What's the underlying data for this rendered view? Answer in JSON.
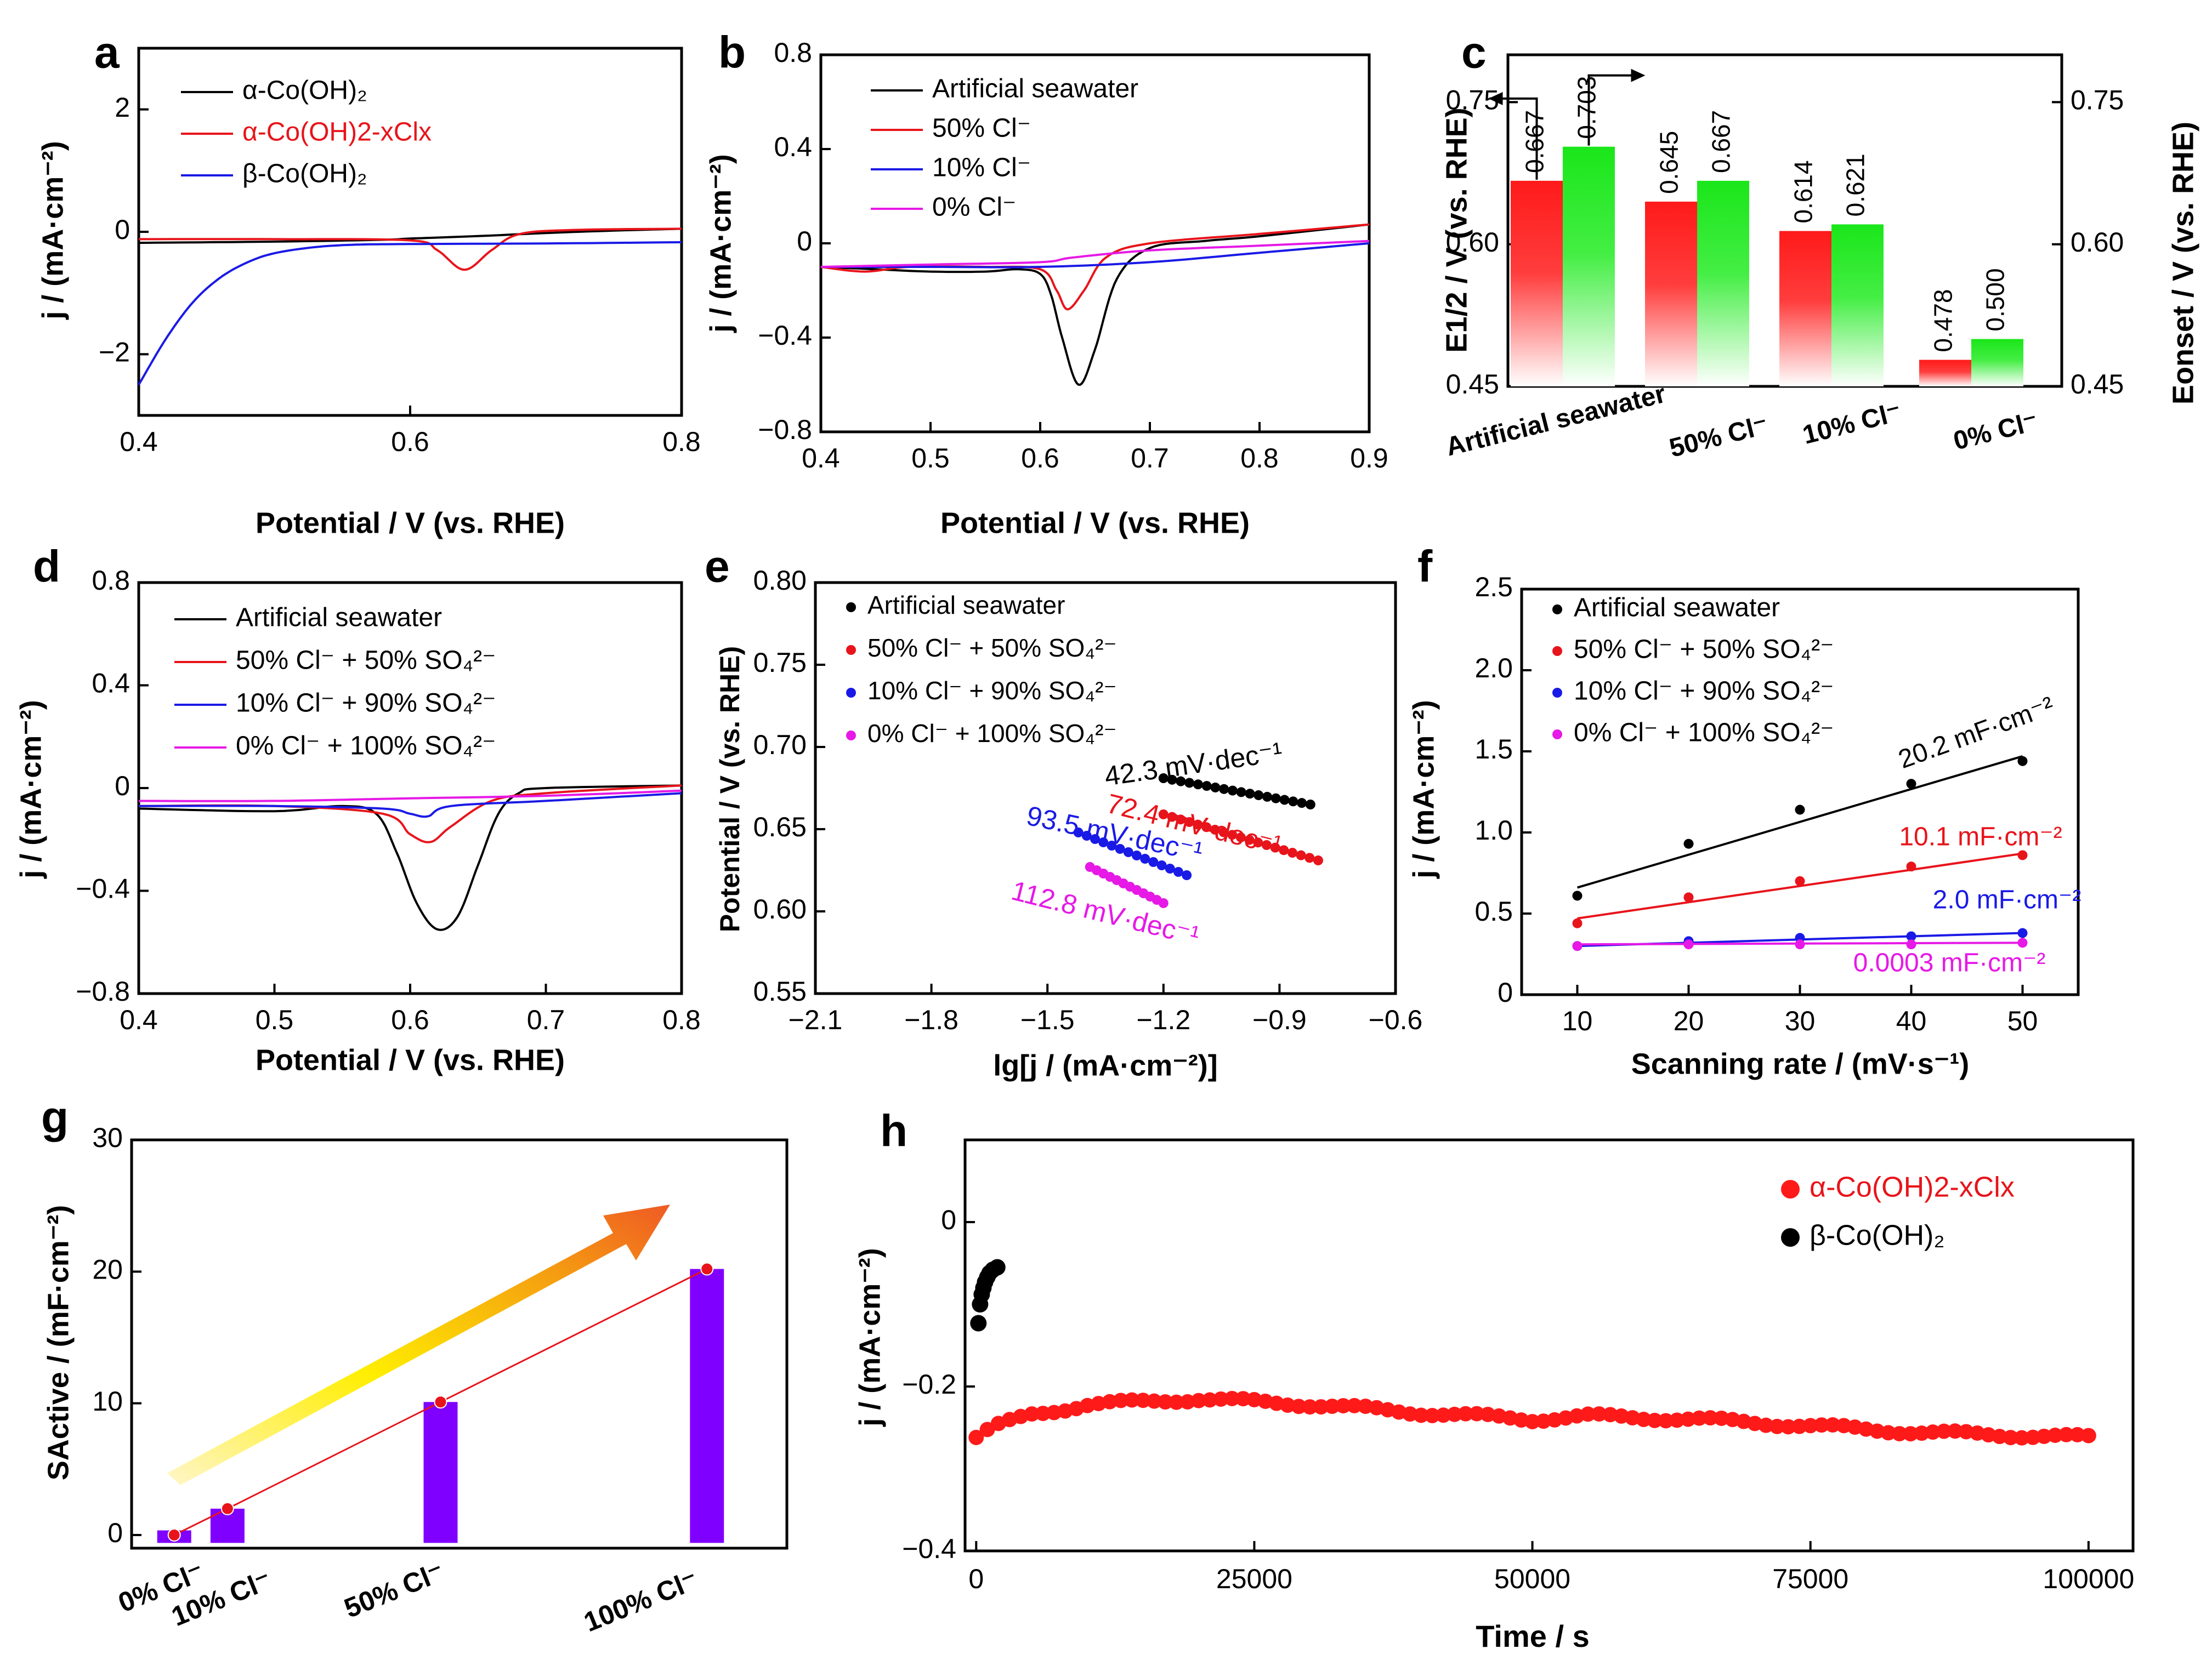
{
  "figure": {
    "panel_letters": [
      "a",
      "b",
      "c",
      "d",
      "e",
      "f",
      "g",
      "h"
    ]
  },
  "chart_data": [
    {
      "id": "a",
      "type": "line",
      "xlabel": "Potential / V (vs. RHE)",
      "ylabel": "j / (mA·cm⁻²)",
      "xlim": [
        0.4,
        0.8
      ],
      "ylim": [
        -3,
        3
      ],
      "xticks": [
        0.4,
        0.6,
        0.8
      ],
      "xticklabels": [
        "0.4",
        "0.6",
        "0.8"
      ],
      "yticks": [
        -2,
        0,
        2
      ],
      "yticklabels": [
        "−2",
        "0",
        "2"
      ],
      "legend": "top-left",
      "series": [
        {
          "name": "α-Co(OH)₂",
          "color": "#000000",
          "points": [
            [
              0.4,
              -0.18
            ],
            [
              0.5,
              -0.16
            ],
            [
              0.58,
              -0.13
            ],
            [
              0.6,
              -0.11
            ],
            [
              0.65,
              -0.07
            ],
            [
              0.7,
              -0.02
            ],
            [
              0.75,
              0.02
            ],
            [
              0.8,
              0.05
            ]
          ]
        },
        {
          "name": "α-Co(OH)2-xClx",
          "color": "#e8141b",
          "points": [
            [
              0.4,
              -0.12
            ],
            [
              0.5,
              -0.12
            ],
            [
              0.6,
              -0.14
            ],
            [
              0.62,
              -0.3
            ],
            [
              0.64,
              -0.62
            ],
            [
              0.66,
              -0.3
            ],
            [
              0.68,
              -0.04
            ],
            [
              0.72,
              0.03
            ],
            [
              0.8,
              0.05
            ]
          ]
        },
        {
          "name": "β-Co(OH)₂",
          "color": "#1a1ae6",
          "points": [
            [
              0.4,
              -2.5
            ],
            [
              0.42,
              -1.75
            ],
            [
              0.44,
              -1.15
            ],
            [
              0.46,
              -0.75
            ],
            [
              0.48,
              -0.5
            ],
            [
              0.5,
              -0.35
            ],
            [
              0.53,
              -0.25
            ],
            [
              0.56,
              -0.21
            ],
            [
              0.6,
              -0.2
            ],
            [
              0.7,
              -0.19
            ],
            [
              0.8,
              -0.17
            ]
          ]
        }
      ]
    },
    {
      "id": "b",
      "type": "line",
      "xlabel": "Potential / V (vs. RHE)",
      "ylabel": "j / (mA·cm⁻²)",
      "xlim": [
        0.4,
        0.9
      ],
      "ylim": [
        -0.8,
        0.8
      ],
      "xticks": [
        0.4,
        0.5,
        0.6,
        0.7,
        0.8,
        0.9
      ],
      "xticklabels": [
        "0.4",
        "0.5",
        "0.6",
        "0.7",
        "0.8",
        "0.9"
      ],
      "yticks": [
        -0.8,
        -0.4,
        0,
        0.4,
        0.8
      ],
      "yticklabels": [
        "−0.8",
        "−0.4",
        "0",
        "0.4",
        "0.8"
      ],
      "legend": "top-left",
      "series": [
        {
          "name": "Artificial seawater",
          "color": "#000000",
          "points": [
            [
              0.4,
              -0.1
            ],
            [
              0.45,
              -0.11
            ],
            [
              0.5,
              -0.12
            ],
            [
              0.55,
              -0.12
            ],
            [
              0.58,
              -0.11
            ],
            [
              0.6,
              -0.13
            ],
            [
              0.61,
              -0.22
            ],
            [
              0.62,
              -0.4
            ],
            [
              0.635,
              -0.6
            ],
            [
              0.65,
              -0.45
            ],
            [
              0.67,
              -0.15
            ],
            [
              0.7,
              -0.02
            ],
            [
              0.75,
              0.01
            ],
            [
              0.8,
              0.03
            ],
            [
              0.9,
              0.08
            ]
          ]
        },
        {
          "name": "50% Cl⁻",
          "color": "#e8141b",
          "points": [
            [
              0.4,
              -0.1
            ],
            [
              0.44,
              -0.12
            ],
            [
              0.48,
              -0.1
            ],
            [
              0.55,
              -0.1
            ],
            [
              0.6,
              -0.11
            ],
            [
              0.615,
              -0.2
            ],
            [
              0.625,
              -0.28
            ],
            [
              0.64,
              -0.2
            ],
            [
              0.66,
              -0.06
            ],
            [
              0.7,
              0.0
            ],
            [
              0.8,
              0.04
            ],
            [
              0.9,
              0.08
            ]
          ]
        },
        {
          "name": "10% Cl⁻",
          "color": "#1a1ae6",
          "points": [
            [
              0.4,
              -0.1
            ],
            [
              0.5,
              -0.1
            ],
            [
              0.6,
              -0.1
            ],
            [
              0.7,
              -0.08
            ],
            [
              0.8,
              -0.04
            ],
            [
              0.9,
              0.0
            ]
          ]
        },
        {
          "name": "0% Cl⁻",
          "color": "#e619e6",
          "points": [
            [
              0.4,
              -0.1
            ],
            [
              0.5,
              -0.09
            ],
            [
              0.6,
              -0.08
            ],
            [
              0.63,
              -0.06
            ],
            [
              0.7,
              -0.03
            ],
            [
              0.8,
              -0.01
            ],
            [
              0.9,
              0.01
            ]
          ]
        }
      ]
    },
    {
      "id": "c",
      "type": "bar",
      "ylabel": "E1/2 / V (vs. RHE)",
      "ylabel2": "Eonset / V (vs. RHE)",
      "ylim": [
        0.45,
        0.8
      ],
      "yticks": [
        0.45,
        0.6,
        0.75
      ],
      "yticklabels": [
        "0.45",
        "0.60",
        "0.75"
      ],
      "categories": [
        "Artificial seawater",
        "50% Cl⁻",
        "10% Cl⁻",
        "0% Cl⁻"
      ],
      "series": [
        {
          "name": "E1/2",
          "color": "#ff1a1a",
          "values": [
            0.667,
            0.645,
            0.614,
            0.478
          ],
          "labels": [
            "0.667",
            "0.645",
            "0.614",
            "0.478"
          ]
        },
        {
          "name": "Eonset",
          "color": "#1ae61a",
          "values": [
            0.703,
            0.667,
            0.621,
            0.5
          ],
          "labels": [
            "0.703",
            "0.667",
            "0.621",
            "0.500"
          ]
        }
      ]
    },
    {
      "id": "d",
      "type": "line",
      "xlabel": "Potential / V (vs. RHE)",
      "ylabel": "j / (mA·cm⁻²)",
      "xlim": [
        0.4,
        0.8
      ],
      "ylim": [
        -0.8,
        0.8
      ],
      "xticks": [
        0.4,
        0.5,
        0.6,
        0.7,
        0.8
      ],
      "xticklabels": [
        "0.4",
        "0.5",
        "0.6",
        "0.7",
        "0.8"
      ],
      "yticks": [
        -0.8,
        -0.4,
        0,
        0.4,
        0.8
      ],
      "yticklabels": [
        "−0.8",
        "−0.4",
        "0",
        "0.4",
        "0.8"
      ],
      "legend": "top-left",
      "series": [
        {
          "name": "Artificial seawater",
          "color": "#000000",
          "points": [
            [
              0.4,
              -0.08
            ],
            [
              0.5,
              -0.09
            ],
            [
              0.55,
              -0.07
            ],
            [
              0.575,
              -0.1
            ],
            [
              0.59,
              -0.25
            ],
            [
              0.605,
              -0.45
            ],
            [
              0.62,
              -0.55
            ],
            [
              0.635,
              -0.5
            ],
            [
              0.65,
              -0.3
            ],
            [
              0.665,
              -0.1
            ],
            [
              0.68,
              -0.02
            ],
            [
              0.7,
              0.0
            ],
            [
              0.8,
              0.01
            ]
          ]
        },
        {
          "name": "50% Cl⁻ + 50% SO₄²⁻",
          "color": "#e8141b",
          "points": [
            [
              0.4,
              -0.07
            ],
            [
              0.5,
              -0.07
            ],
            [
              0.58,
              -0.1
            ],
            [
              0.6,
              -0.18
            ],
            [
              0.615,
              -0.21
            ],
            [
              0.63,
              -0.15
            ],
            [
              0.66,
              -0.05
            ],
            [
              0.7,
              -0.02
            ],
            [
              0.8,
              0.01
            ]
          ]
        },
        {
          "name": "10% Cl⁻ + 90% SO₄²⁻",
          "color": "#1a1ae6",
          "points": [
            [
              0.4,
              -0.07
            ],
            [
              0.5,
              -0.07
            ],
            [
              0.58,
              -0.08
            ],
            [
              0.6,
              -0.1
            ],
            [
              0.613,
              -0.11
            ],
            [
              0.63,
              -0.07
            ],
            [
              0.7,
              -0.05
            ],
            [
              0.8,
              -0.02
            ]
          ]
        },
        {
          "name": "0% Cl⁻ + 100% SO₄²⁻",
          "color": "#e619e6",
          "points": [
            [
              0.4,
              -0.05
            ],
            [
              0.5,
              -0.05
            ],
            [
              0.6,
              -0.04
            ],
            [
              0.7,
              -0.03
            ],
            [
              0.8,
              -0.01
            ]
          ]
        }
      ]
    },
    {
      "id": "e",
      "type": "scatter",
      "xlabel": "lg[j / (mA·cm⁻²)]",
      "ylabel": "Potential / V (vs. RHE)",
      "xlim": [
        -2.1,
        -0.6
      ],
      "ylim": [
        0.55,
        0.8
      ],
      "xticks": [
        -2.1,
        -1.8,
        -1.5,
        -1.2,
        -0.9,
        -0.6
      ],
      "xticklabels": [
        "−2.1",
        "−1.8",
        "−1.5",
        "−1.2",
        "−0.9",
        "−0.6"
      ],
      "yticks": [
        0.55,
        0.6,
        0.65,
        0.7,
        0.75,
        0.8
      ],
      "yticklabels": [
        "0.55",
        "0.60",
        "0.65",
        "0.70",
        "0.75",
        "0.80"
      ],
      "legend": "top-left",
      "series": [
        {
          "name": "Artificial seawater",
          "color": "#000000",
          "x_range": [
            -1.2,
            -0.82
          ],
          "y_range": [
            0.681,
            0.665
          ],
          "n": 18,
          "annotation": "42.3 mV·dec⁻¹"
        },
        {
          "name": "50% Cl⁻ + 50% SO₄²⁻",
          "color": "#e8141b",
          "x_range": [
            -1.2,
            -0.8
          ],
          "y_range": [
            0.659,
            0.631
          ],
          "n": 19,
          "annotation": "72.4 mV·dec⁻¹"
        },
        {
          "name": "10% Cl⁻ + 90% SO₄²⁻",
          "color": "#1a1ae6",
          "x_range": [
            -1.42,
            -1.14
          ],
          "y_range": [
            0.648,
            0.622
          ],
          "n": 14,
          "annotation": "93.5 mV·dec⁻¹"
        },
        {
          "name": "0% Cl⁻ + 100% SO₄²⁻",
          "color": "#e619e6",
          "x_range": [
            -1.39,
            -1.2
          ],
          "y_range": [
            0.627,
            0.605
          ],
          "n": 12,
          "annotation": "112.8 mV·dec⁻¹"
        }
      ]
    },
    {
      "id": "f",
      "type": "scatter",
      "xlabel": "Scanning rate / (mV·s⁻¹)",
      "ylabel": "j / (mA·cm⁻²)",
      "xlim": [
        5,
        55
      ],
      "ylim": [
        0,
        2.5
      ],
      "xticks": [
        10,
        20,
        30,
        40,
        50
      ],
      "xticklabels": [
        "10",
        "20",
        "30",
        "40",
        "50"
      ],
      "yticks": [
        0,
        0.5,
        1.0,
        1.5,
        2.0,
        2.5
      ],
      "yticklabels": [
        "0",
        "0.5",
        "1.0",
        "1.5",
        "2.0",
        "2.5"
      ],
      "legend": "top-left",
      "series": [
        {
          "name": "Artificial seawater",
          "color": "#000000",
          "x": [
            10,
            20,
            30,
            40,
            50
          ],
          "y": [
            0.61,
            0.93,
            1.14,
            1.3,
            1.44
          ],
          "fit": [
            0.66,
            1.47
          ],
          "annotation": "20.2 mF·cm⁻²"
        },
        {
          "name": "50% Cl⁻ + 50% SO₄²⁻",
          "color": "#e8141b",
          "x": [
            10,
            20,
            30,
            40,
            50
          ],
          "y": [
            0.44,
            0.6,
            0.7,
            0.79,
            0.86
          ],
          "fit": [
            0.47,
            0.87
          ],
          "annotation": "10.1 mF·cm⁻²"
        },
        {
          "name": "10% Cl⁻ + 90% SO₄²⁻",
          "color": "#1a1ae6",
          "x": [
            10,
            20,
            30,
            40,
            50
          ],
          "y": [
            0.3,
            0.33,
            0.35,
            0.36,
            0.38
          ],
          "fit": [
            0.3,
            0.38
          ],
          "annotation": "2.0 mF·cm⁻²"
        },
        {
          "name": "0% Cl⁻ + 100% SO₄²⁻",
          "color": "#e619e6",
          "x": [
            10,
            20,
            30,
            40,
            50
          ],
          "y": [
            0.3,
            0.31,
            0.31,
            0.31,
            0.32
          ],
          "fit": [
            0.31,
            0.32
          ],
          "annotation": "0.0003 mF·cm⁻²"
        }
      ]
    },
    {
      "id": "g",
      "type": "bar",
      "ylabel": "SActive / (mF·cm⁻²)",
      "ylim": [
        -1,
        30
      ],
      "yticks": [
        0,
        10,
        20,
        30
      ],
      "yticklabels": [
        "0",
        "10",
        "20",
        "30"
      ],
      "categories": [
        "0% Cl⁻",
        "10% Cl⁻",
        "50% Cl⁻",
        "100% Cl⁻"
      ],
      "cat_x": [
        0,
        10,
        50,
        100
      ],
      "values": [
        0.0003,
        2.0,
        10.1,
        20.2
      ],
      "bar_color": "#8000ff",
      "line_color": "#e8141b"
    },
    {
      "id": "h",
      "type": "scatter",
      "xlabel": "Time / s",
      "ylabel": "j / (mA·cm⁻²)",
      "xlim": [
        0,
        100000
      ],
      "ylim": [
        -0.4,
        0.1
      ],
      "xticks": [
        0,
        25000,
        50000,
        75000,
        100000
      ],
      "xticklabels": [
        "0",
        "25000",
        "50000",
        "75000",
        "100000"
      ],
      "yticks": [
        -0.4,
        -0.2,
        0
      ],
      "yticklabels": [
        "−0.4",
        "−0.2",
        "0"
      ],
      "legend": "top-right",
      "series": [
        {
          "name": "α-Co(OH)2-xClx",
          "color": "#ff1a1a",
          "curve": [
            [
              0,
              -0.262
            ],
            [
              1500,
              -0.25
            ],
            [
              5000,
              -0.234
            ],
            [
              10000,
              -0.222
            ],
            [
              20000,
              -0.215
            ],
            [
              30000,
              -0.222
            ],
            [
              40000,
              -0.232
            ],
            [
              50000,
              -0.24
            ],
            [
              55000,
              -0.236
            ],
            [
              65000,
              -0.24
            ],
            [
              75000,
              -0.248
            ],
            [
              85000,
              -0.256
            ],
            [
              100000,
              -0.262
            ]
          ],
          "step": 1000
        },
        {
          "name": "β-Co(OH)₂",
          "color": "#000000",
          "x": [
            0,
            150,
            300,
            450,
            600,
            800,
            1000,
            1300,
            1700
          ],
          "y": [
            -0.123,
            -0.1,
            -0.088,
            -0.08,
            -0.073,
            -0.067,
            -0.062,
            -0.058,
            -0.055
          ]
        }
      ]
    }
  ]
}
